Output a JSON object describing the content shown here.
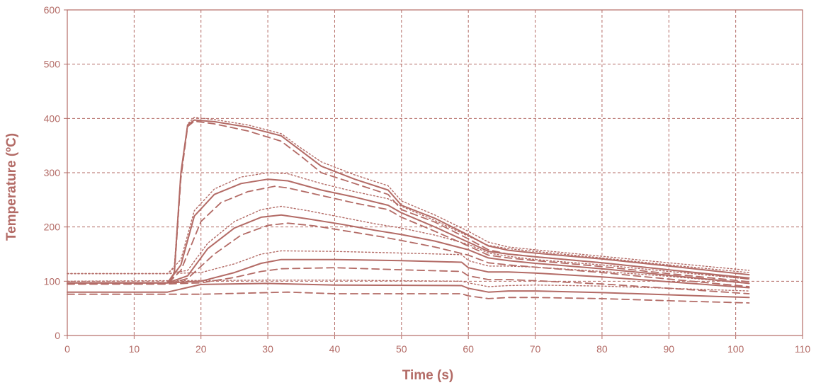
{
  "chart_data": {
    "type": "line",
    "title": "",
    "xlabel": "Time (s)",
    "ylabel": "Temperature (ºC)",
    "xlim": [
      0,
      110
    ],
    "ylim": [
      0,
      600
    ],
    "xticks": [
      0,
      10,
      20,
      30,
      40,
      50,
      60,
      70,
      80,
      90,
      100,
      110
    ],
    "yticks": [
      0,
      100,
      200,
      300,
      400,
      500,
      600
    ],
    "grid": true,
    "grid_style": "dashed",
    "color": "#b36b66",
    "legend": "none",
    "series": [
      {
        "style": "dotted",
        "points": [
          [
            0,
            114
          ],
          [
            15,
            114
          ],
          [
            16,
            125
          ],
          [
            17,
            300
          ],
          [
            18,
            390
          ],
          [
            19,
            402
          ],
          [
            22,
            398
          ],
          [
            27,
            388
          ],
          [
            32,
            372
          ],
          [
            35,
            345
          ],
          [
            38,
            320
          ],
          [
            43,
            296
          ],
          [
            48,
            276
          ],
          [
            50,
            248
          ],
          [
            55,
            222
          ],
          [
            60,
            192
          ],
          [
            63,
            172
          ],
          [
            66,
            163
          ],
          [
            70,
            158
          ],
          [
            80,
            146
          ],
          [
            90,
            134
          ],
          [
            102,
            120
          ]
        ]
      },
      {
        "style": "solid",
        "points": [
          [
            0,
            97
          ],
          [
            15,
            97
          ],
          [
            16,
            115
          ],
          [
            17,
            300
          ],
          [
            18,
            388
          ],
          [
            19,
            397
          ],
          [
            22,
            394
          ],
          [
            27,
            384
          ],
          [
            32,
            368
          ],
          [
            35,
            340
          ],
          [
            38,
            312
          ],
          [
            43,
            288
          ],
          [
            48,
            268
          ],
          [
            50,
            240
          ],
          [
            55,
            216
          ],
          [
            60,
            185
          ],
          [
            63,
            165
          ],
          [
            66,
            157
          ],
          [
            70,
            152
          ],
          [
            80,
            141
          ],
          [
            90,
            128
          ],
          [
            102,
            112
          ]
        ]
      },
      {
        "style": "dashed",
        "points": [
          [
            0,
            95
          ],
          [
            15,
            95
          ],
          [
            16,
            110
          ],
          [
            17,
            290
          ],
          [
            18,
            385
          ],
          [
            19,
            395
          ],
          [
            22,
            390
          ],
          [
            27,
            377
          ],
          [
            32,
            358
          ],
          [
            35,
            330
          ],
          [
            38,
            300
          ],
          [
            43,
            280
          ],
          [
            48,
            260
          ],
          [
            50,
            232
          ],
          [
            55,
            209
          ],
          [
            60,
            178
          ],
          [
            63,
            158
          ],
          [
            66,
            150
          ],
          [
            70,
            145
          ],
          [
            80,
            134
          ],
          [
            90,
            121
          ],
          [
            102,
            104
          ]
        ]
      },
      {
        "style": "dotted",
        "points": [
          [
            0,
            114
          ],
          [
            15,
            114
          ],
          [
            17,
            140
          ],
          [
            19,
            230
          ],
          [
            22,
            270
          ],
          [
            26,
            292
          ],
          [
            30,
            300
          ],
          [
            33,
            298
          ],
          [
            38,
            280
          ],
          [
            43,
            265
          ],
          [
            48,
            252
          ],
          [
            50,
            238
          ],
          [
            55,
            212
          ],
          [
            60,
            183
          ],
          [
            63,
            166
          ],
          [
            66,
            160
          ],
          [
            70,
            155
          ],
          [
            80,
            143
          ],
          [
            90,
            130
          ],
          [
            102,
            116
          ]
        ]
      },
      {
        "style": "solid",
        "points": [
          [
            0,
            97
          ],
          [
            15,
            97
          ],
          [
            17,
            130
          ],
          [
            19,
            220
          ],
          [
            22,
            260
          ],
          [
            26,
            280
          ],
          [
            30,
            288
          ],
          [
            33,
            285
          ],
          [
            38,
            268
          ],
          [
            43,
            255
          ],
          [
            48,
            240
          ],
          [
            50,
            226
          ],
          [
            55,
            200
          ],
          [
            60,
            172
          ],
          [
            63,
            155
          ],
          [
            66,
            150
          ],
          [
            70,
            145
          ],
          [
            80,
            134
          ],
          [
            90,
            121
          ],
          [
            102,
            106
          ]
        ]
      },
      {
        "style": "dashed",
        "points": [
          [
            0,
            95
          ],
          [
            15,
            95
          ],
          [
            17,
            120
          ],
          [
            20,
            210
          ],
          [
            23,
            245
          ],
          [
            27,
            265
          ],
          [
            31,
            275
          ],
          [
            33,
            272
          ],
          [
            38,
            258
          ],
          [
            43,
            244
          ],
          [
            48,
            232
          ],
          [
            50,
            218
          ],
          [
            55,
            192
          ],
          [
            60,
            165
          ],
          [
            63,
            148
          ],
          [
            66,
            143
          ],
          [
            70,
            138
          ],
          [
            80,
            127
          ],
          [
            90,
            114
          ],
          [
            102,
            99
          ]
        ]
      },
      {
        "style": "dotted",
        "points": [
          [
            0,
            114
          ],
          [
            15,
            114
          ],
          [
            18,
            120
          ],
          [
            21,
            170
          ],
          [
            25,
            210
          ],
          [
            29,
            232
          ],
          [
            32,
            238
          ],
          [
            36,
            230
          ],
          [
            41,
            218
          ],
          [
            46,
            206
          ],
          [
            50,
            198
          ],
          [
            55,
            185
          ],
          [
            60,
            168
          ],
          [
            63,
            152
          ],
          [
            66,
            146
          ],
          [
            70,
            140
          ],
          [
            80,
            130
          ],
          [
            90,
            118
          ],
          [
            102,
            104
          ]
        ]
      },
      {
        "style": "solid",
        "points": [
          [
            0,
            97
          ],
          [
            15,
            97
          ],
          [
            18,
            110
          ],
          [
            21,
            160
          ],
          [
            25,
            198
          ],
          [
            29,
            218
          ],
          [
            32,
            222
          ],
          [
            36,
            215
          ],
          [
            41,
            205
          ],
          [
            46,
            194
          ],
          [
            50,
            186
          ],
          [
            55,
            174
          ],
          [
            60,
            158
          ],
          [
            63,
            143
          ],
          [
            66,
            138
          ],
          [
            70,
            133
          ],
          [
            80,
            123
          ],
          [
            90,
            111
          ],
          [
            102,
            96
          ]
        ]
      },
      {
        "style": "dashed",
        "points": [
          [
            0,
            95
          ],
          [
            15,
            95
          ],
          [
            18,
            105
          ],
          [
            22,
            150
          ],
          [
            26,
            185
          ],
          [
            30,
            203
          ],
          [
            33,
            207
          ],
          [
            37,
            202
          ],
          [
            42,
            192
          ],
          [
            47,
            182
          ],
          [
            50,
            175
          ],
          [
            55,
            163
          ],
          [
            60,
            148
          ],
          [
            63,
            134
          ],
          [
            66,
            130
          ],
          [
            70,
            126
          ],
          [
            80,
            116
          ],
          [
            90,
            104
          ],
          [
            102,
            90
          ]
        ]
      },
      {
        "style": "dotted",
        "points": [
          [
            0,
            114
          ],
          [
            15,
            114
          ],
          [
            20,
            116
          ],
          [
            25,
            132
          ],
          [
            29,
            150
          ],
          [
            32,
            156
          ],
          [
            40,
            155
          ],
          [
            50,
            152
          ],
          [
            59,
            149
          ],
          [
            60,
            138
          ],
          [
            63,
            128
          ],
          [
            66,
            128
          ],
          [
            70,
            126
          ],
          [
            80,
            118
          ],
          [
            90,
            109
          ],
          [
            102,
            96
          ]
        ]
      },
      {
        "style": "solid",
        "points": [
          [
            0,
            97
          ],
          [
            15,
            97
          ],
          [
            20,
            100
          ],
          [
            25,
            116
          ],
          [
            29,
            133
          ],
          [
            32,
            140
          ],
          [
            40,
            140
          ],
          [
            50,
            138
          ],
          [
            59,
            135
          ],
          [
            60,
            125
          ],
          [
            63,
            117
          ],
          [
            66,
            117
          ],
          [
            70,
            115
          ],
          [
            80,
            108
          ],
          [
            90,
            99
          ],
          [
            102,
            88
          ]
        ]
      },
      {
        "style": "dashed",
        "points": [
          [
            0,
            95
          ],
          [
            15,
            95
          ],
          [
            20,
            97
          ],
          [
            25,
            107
          ],
          [
            29,
            118
          ],
          [
            32,
            123
          ],
          [
            40,
            125
          ],
          [
            50,
            121
          ],
          [
            59,
            118
          ],
          [
            60,
            110
          ],
          [
            63,
            103
          ],
          [
            66,
            103
          ],
          [
            70,
            101
          ],
          [
            80,
            95
          ],
          [
            90,
            87
          ],
          [
            102,
            77
          ]
        ]
      },
      {
        "style": "dotted",
        "points": [
          [
            0,
            100
          ],
          [
            30,
            102
          ],
          [
            40,
            102
          ],
          [
            59,
            100
          ],
          [
            60,
            97
          ],
          [
            63,
            90
          ],
          [
            66,
            92
          ],
          [
            70,
            93
          ],
          [
            80,
            91
          ],
          [
            90,
            87
          ],
          [
            102,
            82
          ]
        ]
      },
      {
        "style": "solid",
        "points": [
          [
            0,
            80
          ],
          [
            15,
            80
          ],
          [
            20,
            94
          ],
          [
            30,
            96
          ],
          [
            40,
            93
          ],
          [
            59,
            92
          ],
          [
            60,
            87
          ],
          [
            63,
            80
          ],
          [
            66,
            82
          ],
          [
            70,
            82
          ],
          [
            80,
            79
          ],
          [
            90,
            75
          ],
          [
            102,
            70
          ]
        ]
      },
      {
        "style": "dashed",
        "points": [
          [
            0,
            76
          ],
          [
            15,
            76
          ],
          [
            20,
            76
          ],
          [
            33,
            80
          ],
          [
            40,
            77
          ],
          [
            59,
            77
          ],
          [
            60,
            73
          ],
          [
            63,
            68
          ],
          [
            66,
            70
          ],
          [
            70,
            70
          ],
          [
            80,
            68
          ],
          [
            90,
            64
          ],
          [
            102,
            60
          ]
        ]
      }
    ]
  }
}
